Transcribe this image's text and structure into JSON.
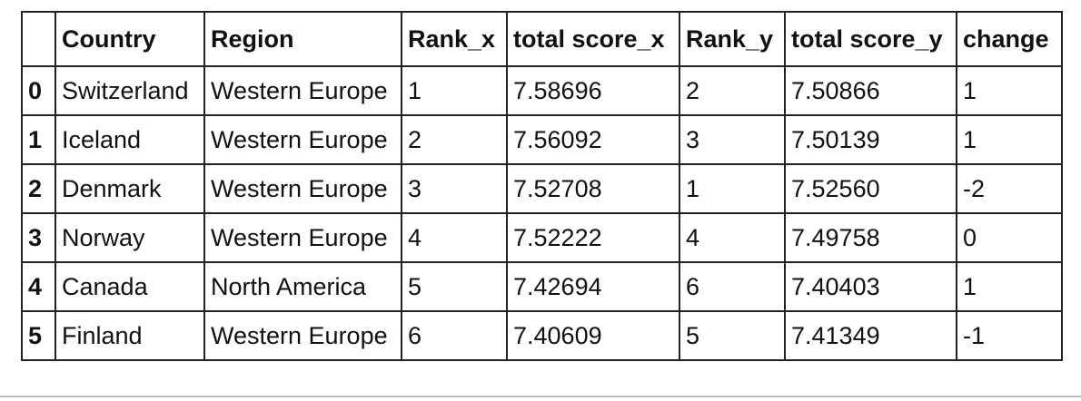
{
  "table": {
    "index_header": "",
    "columns": [
      "Country",
      "Region",
      "Rank_x",
      "total score_x",
      "Rank_y",
      "total score_y",
      "change"
    ],
    "rows": [
      {
        "index": "0",
        "cells": [
          "Switzerland",
          "Western Europe",
          "1",
          "7.58696",
          "2",
          "7.50866",
          "1"
        ]
      },
      {
        "index": "1",
        "cells": [
          "Iceland",
          "Western Europe",
          "2",
          "7.56092",
          "3",
          "7.50139",
          "1"
        ]
      },
      {
        "index": "2",
        "cells": [
          "Denmark",
          "Western Europe",
          "3",
          "7.52708",
          "1",
          "7.52560",
          "-2"
        ]
      },
      {
        "index": "3",
        "cells": [
          "Norway",
          "Western Europe",
          "4",
          "7.52222",
          "4",
          "7.49758",
          "0"
        ]
      },
      {
        "index": "4",
        "cells": [
          "Canada",
          "North America",
          "5",
          "7.42694",
          "6",
          "7.40403",
          "1"
        ]
      },
      {
        "index": "5",
        "cells": [
          "Finland",
          "Western Europe",
          "6",
          "7.40609",
          "5",
          "7.41349",
          "-1"
        ]
      }
    ]
  }
}
